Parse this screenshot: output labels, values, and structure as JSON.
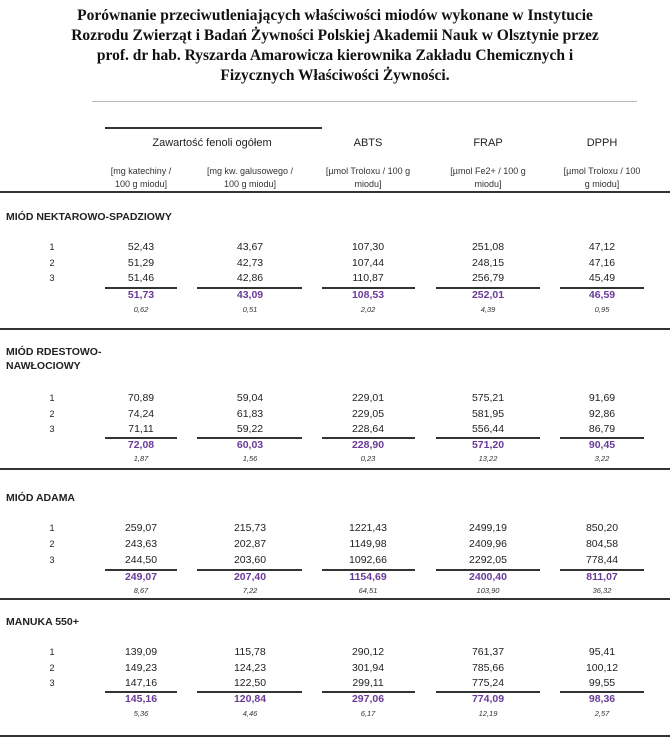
{
  "title_lines": [
    "Porównanie przeciwutleniających właściwości miodów wykonane w Instytucie",
    "Rozrodu Zwierząt i Badań Żywności Polskiej Akademii Nauk w Olsztynie przez",
    "prof. dr hab. Ryszarda Amarowicza kierownika Zakładu Chemicznych i",
    "Fizycznych Właściwości Żywności."
  ],
  "columns": {
    "group_header": "Zawartość fenoli ogółem",
    "headers": [
      "ABTS",
      "FRAP",
      "DPPH"
    ],
    "units": [
      [
        "[mg katechiny /",
        "100 g miodu]"
      ],
      [
        "[mg kw. galusowego /",
        "100 g miodu]"
      ],
      [
        "[µmol Troloxu / 100 g",
        "miodu]"
      ],
      [
        "[µmol Fe2+ / 100 g",
        "miodu]"
      ],
      [
        "[µmol Troloxu / 100",
        "g miodu]"
      ]
    ]
  },
  "mean_color": "#6a3a99",
  "sections": [
    {
      "name": [
        "MIÓD NEKTAROWO-SPADZIOWY"
      ],
      "rows": [
        {
          "rep": "1",
          "values": [
            "52,43",
            "43,67",
            "107,30",
            "251,08",
            "47,12"
          ]
        },
        {
          "rep": "2",
          "values": [
            "51,29",
            "42,73",
            "107,44",
            "248,15",
            "47,16"
          ]
        },
        {
          "rep": "3",
          "values": [
            "51,46",
            "42,86",
            "110,87",
            "256,79",
            "45,49"
          ]
        }
      ],
      "mean": [
        "51,73",
        "43,09",
        "108,53",
        "252,01",
        "46,59"
      ],
      "sd": [
        "0,62",
        "0,51",
        "2,02",
        "4,39",
        "0,95"
      ]
    },
    {
      "name": [
        "MIÓD RDESTOWO-",
        "NAWŁOCIOWY"
      ],
      "rows": [
        {
          "rep": "1",
          "values": [
            "70,89",
            "59,04",
            "229,01",
            "575,21",
            "91,69"
          ]
        },
        {
          "rep": "2",
          "values": [
            "74,24",
            "61,83",
            "229,05",
            "581,95",
            "92,86"
          ]
        },
        {
          "rep": "3",
          "values": [
            "71,11",
            "59,22",
            "228,64",
            "556,44",
            "86,79"
          ]
        }
      ],
      "mean": [
        "72,08",
        "60,03",
        "228,90",
        "571,20",
        "90,45"
      ],
      "sd": [
        "1,87",
        "1,56",
        "0,23",
        "13,22",
        "3,22"
      ]
    },
    {
      "name": [
        "MIÓD ADAMA"
      ],
      "rows": [
        {
          "rep": "1",
          "values": [
            "259,07",
            "215,73",
            "1221,43",
            "2499,19",
            "850,20"
          ]
        },
        {
          "rep": "2",
          "values": [
            "243,63",
            "202,87",
            "1149,98",
            "2409,96",
            "804,58"
          ]
        },
        {
          "rep": "3",
          "values": [
            "244,50",
            "203,60",
            "1092,66",
            "2292,05",
            "778,44"
          ]
        }
      ],
      "mean": [
        "249,07",
        "207,40",
        "1154,69",
        "2400,40",
        "811,07"
      ],
      "sd": [
        "8,67",
        "7,22",
        "64,51",
        "103,90",
        "36,32"
      ]
    },
    {
      "name": [
        "MANUKA 550+"
      ],
      "rows": [
        {
          "rep": "1",
          "values": [
            "139,09",
            "115,78",
            "290,12",
            "761,37",
            "95,41"
          ]
        },
        {
          "rep": "2",
          "values": [
            "149,23",
            "124,23",
            "301,94",
            "785,66",
            "100,12"
          ]
        },
        {
          "rep": "3",
          "values": [
            "147,16",
            "122,50",
            "299,11",
            "775,24",
            "99,55"
          ]
        }
      ],
      "mean": [
        "145,16",
        "120,84",
        "297,06",
        "774,09",
        "98,36"
      ],
      "sd": [
        "5,36",
        "4,46",
        "6,17",
        "12,19",
        "2,57"
      ]
    }
  ]
}
